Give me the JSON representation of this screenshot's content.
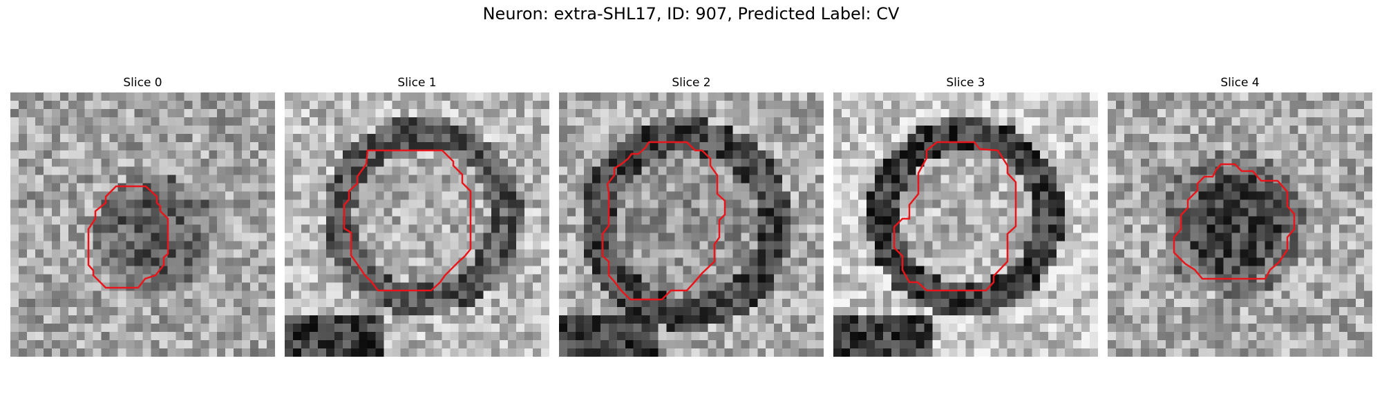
{
  "figure": {
    "title": "Neuron: extra-SHL17, ID: 907, Predicted Label: CV"
  },
  "colors": {
    "contour": "#e8161b",
    "background": "#ffffff"
  },
  "panels": [
    {
      "title": "Slice 0"
    },
    {
      "title": "Slice 1"
    },
    {
      "title": "Slice 2"
    },
    {
      "title": "Slice 3"
    },
    {
      "title": "Slice 4"
    }
  ]
}
